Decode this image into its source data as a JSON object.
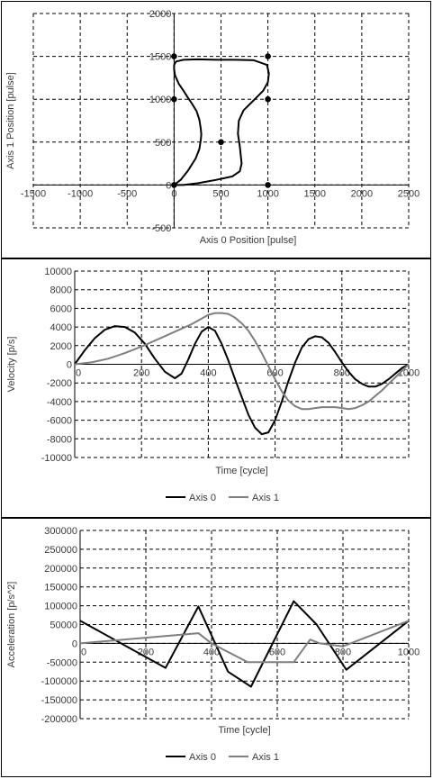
{
  "chart_data": [
    {
      "type": "scatter",
      "xlabel": "Axis 0 Position [pulse]",
      "ylabel": "Axis 1 Position [pulse]",
      "xlim": [
        -1500,
        2500
      ],
      "ylim": [
        -500,
        2000
      ],
      "x_ticks": [
        -1500,
        -1000,
        -500,
        0,
        500,
        1000,
        1500,
        2000,
        2500
      ],
      "y_ticks": [
        -500,
        0,
        500,
        1000,
        1500,
        2000
      ],
      "grid": true,
      "series": [
        {
          "kind": "line",
          "color": "#000000",
          "x": [
            0,
            70,
            150,
            230,
            270,
            285,
            290,
            285,
            270,
            240,
            190,
            140,
            100,
            50,
            10,
            0,
            0,
            20,
            100,
            250,
            450,
            650,
            850,
            990,
            1010,
            1000,
            950,
            860,
            740,
            690,
            680,
            700,
            720,
            700,
            620,
            450,
            250,
            100,
            0
          ],
          "y": [
            0,
            60,
            170,
            310,
            420,
            530,
            590,
            650,
            760,
            860,
            950,
            1030,
            1100,
            1180,
            1280,
            1350,
            1400,
            1440,
            1460,
            1465,
            1460,
            1460,
            1455,
            1400,
            1300,
            1200,
            1100,
            1000,
            870,
            750,
            600,
            450,
            250,
            160,
            100,
            60,
            20,
            0,
            0
          ]
        },
        {
          "kind": "markers",
          "color": "#000000",
          "x": [
            0,
            0,
            0,
            500,
            1000,
            1000,
            1000
          ],
          "y": [
            0,
            1000,
            1500,
            500,
            0,
            1000,
            1500
          ]
        }
      ],
      "x_tick_labels": [
        "-1500",
        "-1000",
        "-500",
        "0",
        "500",
        "1000",
        "1500",
        "2000",
        "2500"
      ],
      "y_tick_labels": [
        "-500",
        "0",
        "500",
        "1000",
        "1500",
        "2000"
      ]
    },
    {
      "type": "line",
      "xlabel": "Time [cycle]",
      "ylabel": "Velocity [p/s]",
      "xlim": [
        0,
        1000
      ],
      "ylim": [
        -10000,
        10000
      ],
      "x_ticks": [
        0,
        200,
        400,
        600,
        800,
        1000
      ],
      "y_ticks": [
        -10000,
        -8000,
        -6000,
        -4000,
        -2000,
        0,
        2000,
        4000,
        6000,
        8000,
        10000
      ],
      "grid": true,
      "legend": "bottom",
      "series": [
        {
          "name": "Axis 0",
          "color": "#000000",
          "x": [
            0,
            30,
            60,
            90,
            120,
            150,
            180,
            210,
            240,
            270,
            300,
            320,
            340,
            360,
            380,
            400,
            420,
            440,
            460,
            480,
            500,
            520,
            540,
            560,
            580,
            600,
            620,
            640,
            660,
            680,
            700,
            720,
            740,
            760,
            780,
            800,
            820,
            840,
            860,
            880,
            900,
            920,
            940,
            960,
            980,
            1000
          ],
          "y": [
            0,
            1500,
            2800,
            3700,
            4100,
            4000,
            3400,
            2200,
            600,
            -800,
            -1500,
            -1000,
            500,
            2200,
            3500,
            4000,
            3600,
            2200,
            400,
            -1600,
            -3500,
            -5400,
            -6800,
            -7500,
            -7300,
            -6000,
            -4000,
            -1800,
            200,
            1800,
            2700,
            3000,
            2900,
            2300,
            1300,
            200,
            -800,
            -1600,
            -2100,
            -2400,
            -2400,
            -2100,
            -1600,
            -1000,
            -400,
            0
          ]
        },
        {
          "name": "Axis 1",
          "color": "#7f7f7f",
          "x": [
            0,
            50,
            100,
            150,
            200,
            250,
            300,
            350,
            380,
            400,
            420,
            440,
            460,
            480,
            500,
            520,
            540,
            560,
            580,
            600,
            620,
            640,
            660,
            680,
            700,
            720,
            740,
            760,
            780,
            800,
            820,
            840,
            860,
            880,
            900,
            920,
            940,
            960,
            980,
            1000
          ],
          "y": [
            0,
            200,
            600,
            1200,
            1900,
            2700,
            3500,
            4300,
            4900,
            5300,
            5500,
            5500,
            5400,
            5000,
            4400,
            3600,
            2500,
            1200,
            -200,
            -1600,
            -2900,
            -3900,
            -4500,
            -4800,
            -4800,
            -4700,
            -4600,
            -4600,
            -4600,
            -4700,
            -4800,
            -4700,
            -4400,
            -4000,
            -3400,
            -2800,
            -2100,
            -1400,
            -700,
            0
          ]
        }
      ],
      "x_tick_labels": [
        "0",
        "200",
        "400",
        "600",
        "800",
        "1000"
      ],
      "y_tick_labels": [
        "-10000",
        "-8000",
        "-6000",
        "-4000",
        "-2000",
        "0",
        "2000",
        "4000",
        "6000",
        "8000",
        "10000"
      ]
    },
    {
      "type": "line",
      "xlabel": "Time [cycle]",
      "ylabel": "Acceleration [p/s^2]",
      "xlim": [
        0,
        1000
      ],
      "ylim": [
        -200000,
        300000
      ],
      "x_ticks": [
        0,
        200,
        400,
        600,
        800,
        1000
      ],
      "y_ticks": [
        -200000,
        -150000,
        -100000,
        -50000,
        0,
        50000,
        100000,
        150000,
        200000,
        250000,
        300000
      ],
      "grid": true,
      "legend": "bottom",
      "series": [
        {
          "name": "Axis 0",
          "color": "#000000",
          "x": [
            0,
            260,
            360,
            450,
            520,
            650,
            720,
            810,
            1000
          ],
          "y": [
            60000,
            -65000,
            98000,
            -75000,
            -115000,
            112000,
            50000,
            -70000,
            60000
          ]
        },
        {
          "name": "Axis 1",
          "color": "#7f7f7f",
          "x": [
            0,
            360,
            400,
            510,
            650,
            700,
            730,
            800,
            1000
          ],
          "y": [
            0,
            27000,
            0,
            -50000,
            -50000,
            10000,
            0,
            -8000,
            60000
          ]
        }
      ],
      "x_tick_labels": [
        "0",
        "200",
        "400",
        "600",
        "800",
        "1000"
      ],
      "y_tick_labels": [
        "-200000",
        "-150000",
        "-100000",
        "-50000",
        "0",
        "50000",
        "100000",
        "150000",
        "200000",
        "250000",
        "300000"
      ]
    }
  ]
}
